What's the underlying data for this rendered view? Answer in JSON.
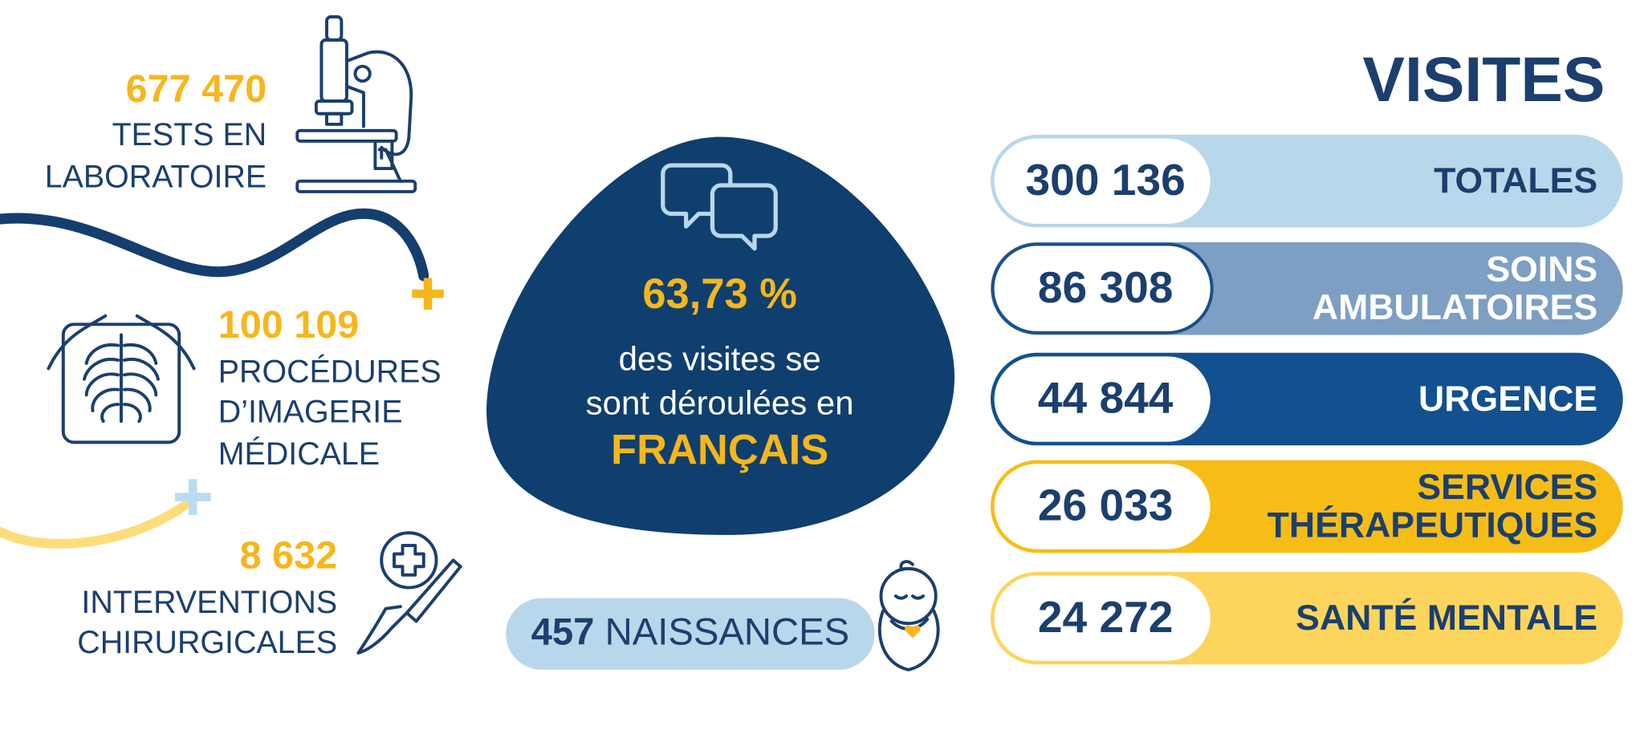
{
  "stats": [
    {
      "value": "677 470",
      "label_lines": [
        "TESTS EN",
        "LABORATOIRE"
      ]
    },
    {
      "value": "100 109",
      "label_lines": [
        "PROCÉDURES",
        "D’IMAGERIE",
        "MÉDICALE"
      ]
    },
    {
      "value": "8 632",
      "label_lines": [
        "INTERVENTIONS",
        "CHIRURGICALES"
      ]
    }
  ],
  "french": {
    "percent": "63,73 %",
    "text_lines": [
      "des visites se",
      "sont déroulées en"
    ],
    "emphasis": "FRANÇAIS"
  },
  "births": {
    "value": "457",
    "label": "NAISSANCES"
  },
  "visits": {
    "title": "VISITES",
    "rows": [
      {
        "value": "300 136",
        "label_lines": [
          "TOTALES"
        ]
      },
      {
        "value": "86 308",
        "label_lines": [
          "SOINS",
          "AMBULATOIRES"
        ]
      },
      {
        "value": "44 844",
        "label_lines": [
          "URGENCE"
        ]
      },
      {
        "value": "26 033",
        "label_lines": [
          "SERVICES",
          "THÉRAPEUTIQUES"
        ]
      },
      {
        "value": "24 272",
        "label_lines": [
          "SANTÉ MENTALE"
        ]
      }
    ]
  }
}
